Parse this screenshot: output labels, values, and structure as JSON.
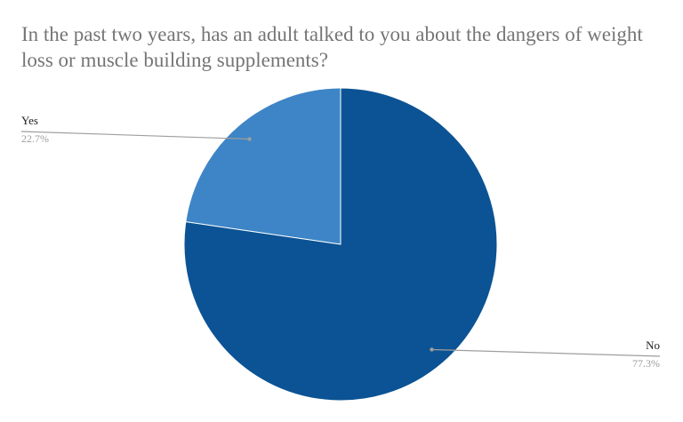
{
  "chart_data": {
    "type": "pie",
    "title": "In the past two years, has an adult talked to you about the dangers of weight loss or muscle building supplements?",
    "slices": [
      {
        "label": "Yes",
        "value": 22.7,
        "display": "22.7%",
        "color": "#3d85c6"
      },
      {
        "label": "No",
        "value": 77.3,
        "display": "77.3%",
        "color": "#0b5394"
      }
    ],
    "legend": "none",
    "start_angle_deg": 0,
    "direction": "counterclockwise",
    "leader_line_color": "#9e9e9e",
    "border_color": "#ffffff"
  }
}
